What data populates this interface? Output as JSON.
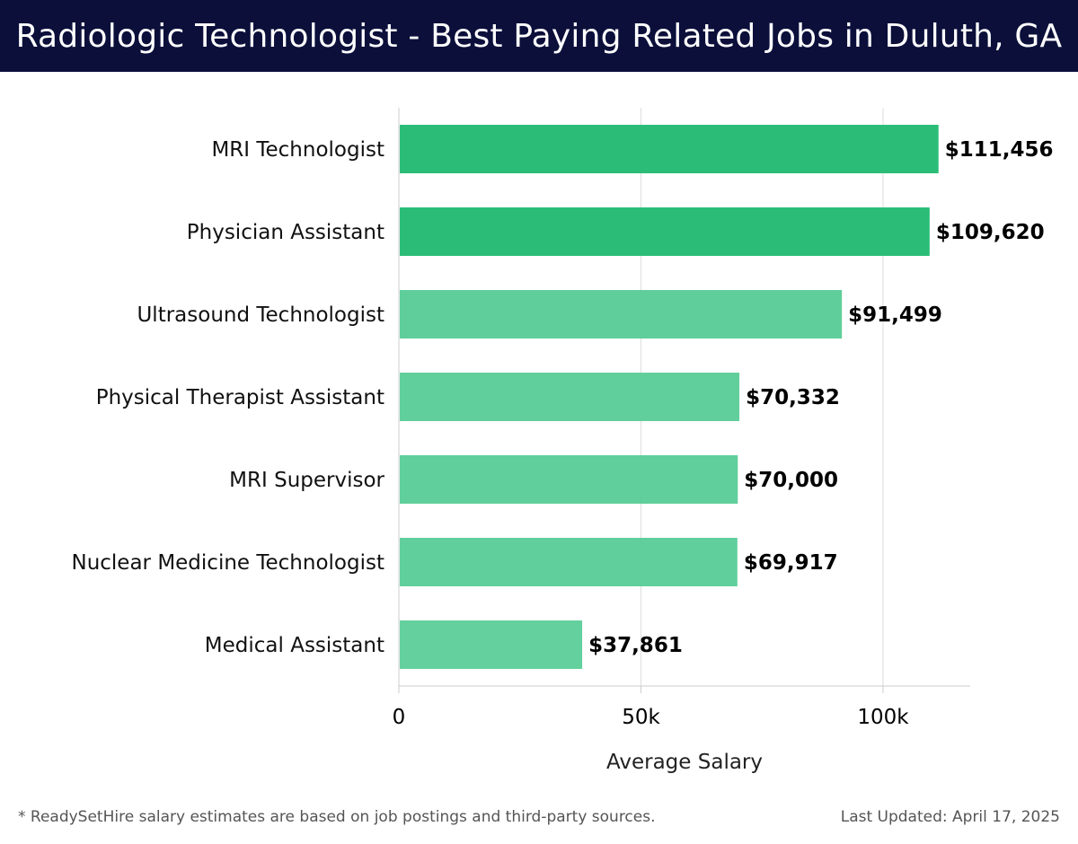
{
  "header": {
    "title": "Radiologic Technologist - Best Paying Related Jobs in Duluth, GA"
  },
  "chart_data": {
    "type": "bar",
    "orientation": "horizontal",
    "title": "Radiologic Technologist - Best Paying Related Jobs in Duluth, GA",
    "xlabel": "Average Salary",
    "ylabel": "",
    "xlim": [
      0,
      118000
    ],
    "xticks": [
      {
        "value": 0,
        "label": "0"
      },
      {
        "value": 50000,
        "label": "50k"
      },
      {
        "value": 100000,
        "label": "100k"
      }
    ],
    "grid": true,
    "categories": [
      "MRI Technologist",
      "Physician Assistant",
      "Ultrasound Technologist",
      "Physical Therapist Assistant",
      "MRI Supervisor",
      "Nuclear Medicine Technologist",
      "Medical Assistant"
    ],
    "values": [
      111456,
      109620,
      91499,
      70332,
      70000,
      69917,
      37861
    ],
    "value_labels": [
      "$111,456",
      "$109,620",
      "$91,499",
      "$70,332",
      "$70,000",
      "$69,917",
      "$37,861"
    ],
    "colors": {
      "bar_strong": "#2bbd77",
      "bar_light": "#5ccd98",
      "grid": "#dddddd",
      "axis": "#cccccc"
    }
  },
  "footer": {
    "note": "* ReadySetHire salary estimates are based on job postings and third-party sources.",
    "updated": "Last Updated: April 17, 2025"
  }
}
